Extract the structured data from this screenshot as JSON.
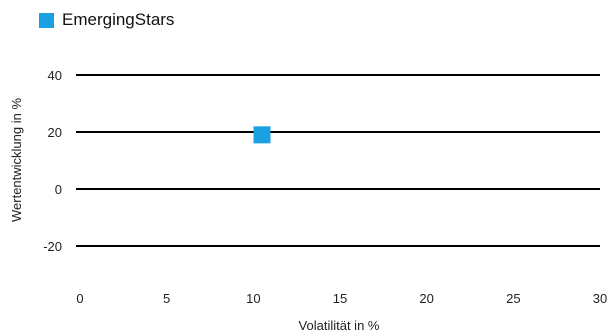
{
  "chart_data": {
    "type": "scatter",
    "title": "",
    "xlabel": "Volatilität in %",
    "ylabel": "Wertentwicklung in %",
    "xlim": [
      0,
      30
    ],
    "ylim": [
      -25,
      45
    ],
    "x_ticks": [
      0,
      5,
      10,
      15,
      20,
      25,
      30
    ],
    "y_ticks": [
      -20,
      0,
      20,
      40
    ],
    "grid": "horizontal",
    "legend_position": "top-left",
    "series": [
      {
        "name": "EmergingStars",
        "color": "#1ba1e2",
        "marker": "square",
        "points": [
          {
            "x": 10.5,
            "y": 19
          }
        ]
      }
    ]
  }
}
